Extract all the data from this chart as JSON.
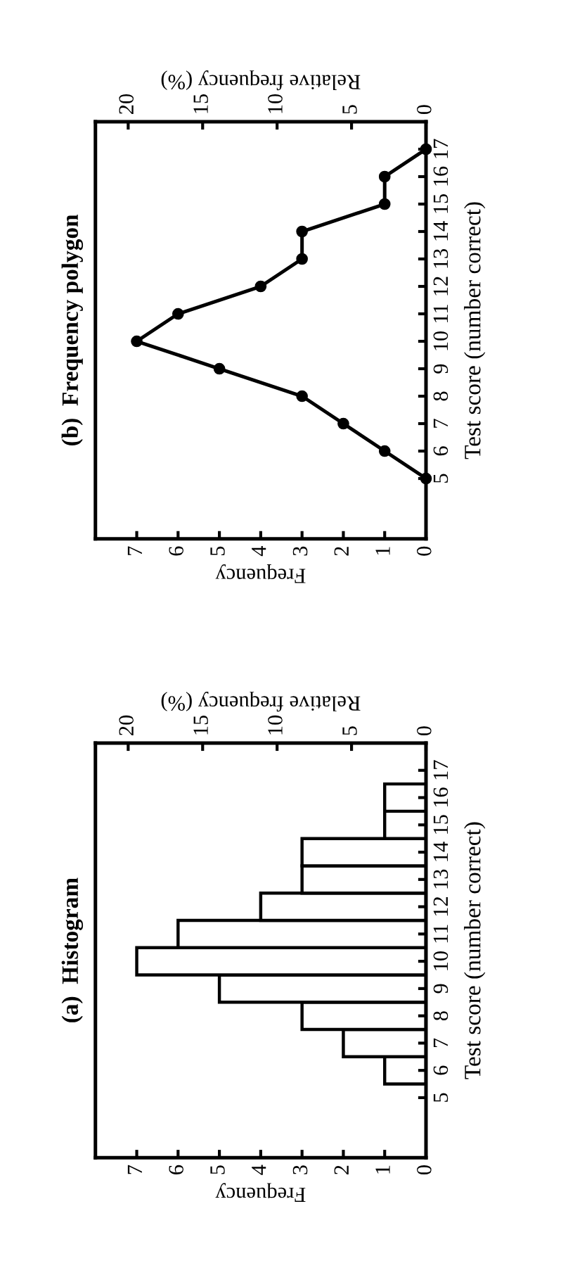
{
  "chart_data": [
    {
      "type": "histogram",
      "title": "(a)  Histogram",
      "orientation": "horizontal",
      "bins": [
        5.5,
        6.5,
        7.5,
        8.5,
        9.5,
        10.5,
        11.5,
        12.5,
        13.5,
        14.5,
        15.5,
        16.5
      ],
      "values": [
        1,
        2,
        3,
        5,
        7,
        6,
        4,
        3,
        3,
        1,
        1
      ],
      "color": "#ffffff",
      "xlabel": "Frequency",
      "xlim": [
        8,
        0
      ],
      "xticks": [
        0,
        1,
        2,
        3,
        4,
        5,
        6,
        7
      ],
      "x2label": "Relative frequency (%)",
      "x2lim": [
        22.2,
        0
      ],
      "x2ticks": [
        0,
        5,
        10,
        15,
        20
      ],
      "ylabel": "Test score (number correct)",
      "ylim": [
        2.8,
        18
      ],
      "yticks": [
        5,
        6,
        7,
        8,
        9,
        10,
        11,
        12,
        13,
        14,
        15,
        16,
        17
      ],
      "grid": false
    },
    {
      "type": "line",
      "title": "(b)  Frequency polygon",
      "orientation": "horizontal",
      "x": [
        5,
        6,
        7,
        8,
        9,
        10,
        11,
        12,
        13,
        14,
        15,
        16,
        17
      ],
      "values": [
        0,
        1,
        2,
        3,
        5,
        7,
        6,
        4,
        3,
        3,
        1,
        1,
        0
      ],
      "color": "#000000",
      "marker": "circle",
      "line_style": "solid",
      "xlabel": "Frequency",
      "xlim": [
        8,
        0
      ],
      "xticks": [
        0,
        1,
        2,
        3,
        4,
        5,
        6,
        7
      ],
      "x2label": "Relative frequency (%)",
      "x2lim": [
        22.2,
        0
      ],
      "x2ticks": [
        0,
        5,
        10,
        15,
        20
      ],
      "ylabel": "Test score (number correct)",
      "ylim": [
        2.8,
        18
      ],
      "yticks": [
        5,
        6,
        7,
        8,
        9,
        10,
        11,
        12,
        13,
        14,
        15,
        16,
        17
      ],
      "grid": false
    }
  ]
}
